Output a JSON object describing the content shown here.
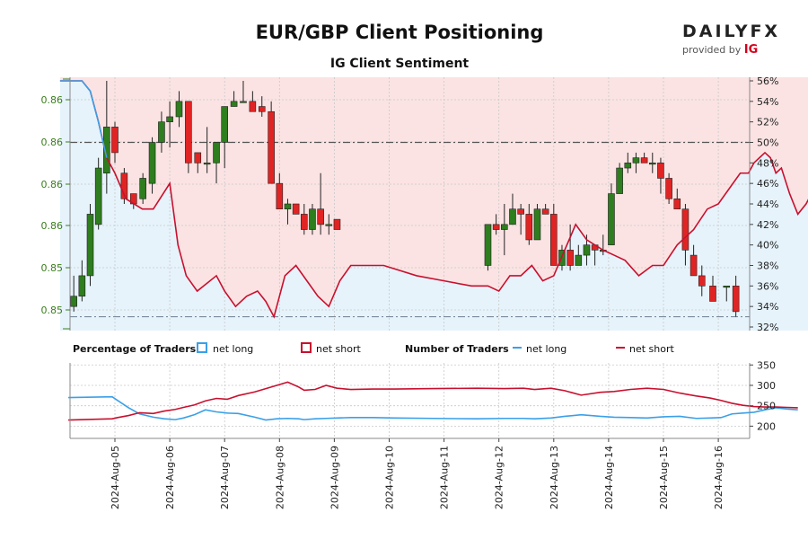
{
  "header": {
    "title": "EUR/GBP Client Positioning",
    "subtitle": "IG Client Sentiment"
  },
  "logo": {
    "brand_left": "DAILY",
    "brand_right": "FX",
    "provided_by": "provided by",
    "provider": "IG"
  },
  "colors": {
    "bull": "#2e7d1e",
    "bear": "#e02424",
    "long_line": "#3aa0e8",
    "short_line": "#c8102e",
    "long_fill": "#e6f3fb",
    "short_fill": "#fbe3e3",
    "left_axis": "#3a7d1c"
  },
  "chart_data": [
    {
      "type": "candlestick",
      "left_axis_ticks": [
        "0.86",
        "0.86",
        "0.86",
        "0.86",
        "0.85",
        "0.85"
      ],
      "right_axis_ticks": [
        "56%",
        "54%",
        "52%",
        "50%",
        "48%",
        "46%",
        "44%",
        "42%",
        "40%",
        "38%",
        "36%",
        "34%",
        "32%"
      ],
      "right_ylim": [
        32,
        56
      ],
      "reference_lines": [
        50,
        33
      ],
      "dates": [
        "2024-Aug-05",
        "2024-Aug-06",
        "2024-Aug-07",
        "2024-Aug-08",
        "2024-Aug-09",
        "2024-Aug-10",
        "2024-Aug-11",
        "2024-Aug-12",
        "2024-Aug-13",
        "2024-Aug-14",
        "2024-Aug-15",
        "2024-Aug-16"
      ],
      "candles": [
        [
          -0.75,
          33.5,
          37.0,
          34.0,
          35.0
        ],
        [
          -0.6,
          34.5,
          38.5,
          35.0,
          37.0
        ],
        [
          -0.45,
          36.0,
          44.0,
          37.0,
          43.0
        ],
        [
          -0.3,
          41.5,
          48.5,
          42.0,
          47.5
        ],
        [
          -0.15,
          45.0,
          56.0,
          47.0,
          51.5
        ],
        [
          0.0,
          48.0,
          52.0,
          51.5,
          49.0
        ],
        [
          0.17,
          44.0,
          47.5,
          47.0,
          44.5
        ],
        [
          0.34,
          43.5,
          45.0,
          45.0,
          44.0
        ],
        [
          0.51,
          44.0,
          47.0,
          44.5,
          46.5
        ],
        [
          0.68,
          45.0,
          50.5,
          46.0,
          50.0
        ],
        [
          0.85,
          49.0,
          53.0,
          50.0,
          52.0
        ],
        [
          1.0,
          49.5,
          54.0,
          52.0,
          52.5
        ],
        [
          1.17,
          51.5,
          55.0,
          52.5,
          54.0
        ],
        [
          1.34,
          47.0,
          54.0,
          54.0,
          48.0
        ],
        [
          1.51,
          47.0,
          49.0,
          49.0,
          48.0
        ],
        [
          1.68,
          47.0,
          51.5,
          48.0,
          48.0
        ],
        [
          1.85,
          46.0,
          50.0,
          48.0,
          50.0
        ],
        [
          2.0,
          47.5,
          53.5,
          50.0,
          53.5
        ],
        [
          2.17,
          53.5,
          55.0,
          53.5,
          54.0
        ],
        [
          2.34,
          54.0,
          56.0,
          54.0,
          54.0
        ],
        [
          2.51,
          53.0,
          55.0,
          54.0,
          53.0
        ],
        [
          2.68,
          52.5,
          54.5,
          53.5,
          53.0
        ],
        [
          2.85,
          46.0,
          54.0,
          53.0,
          46.0
        ],
        [
          3.0,
          45.0,
          47.0,
          46.0,
          43.5
        ],
        [
          3.15,
          42.0,
          44.5,
          43.5,
          44.0
        ],
        [
          3.3,
          43.0,
          44.0,
          44.0,
          43.0
        ],
        [
          3.45,
          41.0,
          44.0,
          43.0,
          41.5
        ],
        [
          3.6,
          41.0,
          44.0,
          41.5,
          43.5
        ],
        [
          3.75,
          41.0,
          47.0,
          43.5,
          42.0
        ],
        [
          3.9,
          41.0,
          43.0,
          42.0,
          42.0
        ],
        [
          4.05,
          41.5,
          42.5,
          42.5,
          41.5
        ],
        [
          6.8,
          37.5,
          42.0,
          38.0,
          42.0
        ],
        [
          6.95,
          41.0,
          43.0,
          42.0,
          41.5
        ],
        [
          7.1,
          39.0,
          44.0,
          41.5,
          42.0
        ],
        [
          7.25,
          42.0,
          45.0,
          42.0,
          43.5
        ],
        [
          7.4,
          41.0,
          44.0,
          43.5,
          43.0
        ],
        [
          7.55,
          40.0,
          44.0,
          43.0,
          40.5
        ],
        [
          7.7,
          41.0,
          44.0,
          40.5,
          43.5
        ],
        [
          7.85,
          43.0,
          44.0,
          43.5,
          43.0
        ],
        [
          8.0,
          38.0,
          44.0,
          43.0,
          38.0
        ],
        [
          8.15,
          37.5,
          40.0,
          38.0,
          39.5
        ],
        [
          8.3,
          37.5,
          42.0,
          39.5,
          38.0
        ],
        [
          8.45,
          38.0,
          40.0,
          38.0,
          39.0
        ],
        [
          8.6,
          38.0,
          41.0,
          39.0,
          40.0
        ],
        [
          8.75,
          38.0,
          40.0,
          40.0,
          39.5
        ],
        [
          8.9,
          39.0,
          41.0,
          39.5,
          39.5
        ],
        [
          9.05,
          40.0,
          46.0,
          40.0,
          45.0
        ],
        [
          9.2,
          45.0,
          48.0,
          45.0,
          47.5
        ],
        [
          9.35,
          47.0,
          49.0,
          47.5,
          48.0
        ],
        [
          9.5,
          47.0,
          49.0,
          48.0,
          48.5
        ],
        [
          9.65,
          48.0,
          49.0,
          48.5,
          48.0
        ],
        [
          9.8,
          47.0,
          49.0,
          48.0,
          48.0
        ],
        [
          9.95,
          45.0,
          48.5,
          48.0,
          46.5
        ],
        [
          10.1,
          44.0,
          47.0,
          46.5,
          44.5
        ],
        [
          10.25,
          44.0,
          45.5,
          44.5,
          43.5
        ],
        [
          10.4,
          38.0,
          44.0,
          43.5,
          39.5
        ],
        [
          10.55,
          37.5,
          40.0,
          39.0,
          37.0
        ],
        [
          10.7,
          35.0,
          38.0,
          37.0,
          36.0
        ],
        [
          10.9,
          34.5,
          37.0,
          36.0,
          34.5
        ],
        [
          11.15,
          34.5,
          36.0,
          36.0,
          36.0
        ],
        [
          11.32,
          33.0,
          37.0,
          36.0,
          33.5
        ]
      ],
      "net_short_pct": [
        [
          -1.0,
          56.0
        ],
        [
          -0.6,
          56.0
        ],
        [
          -0.45,
          55.0
        ],
        [
          -0.3,
          52.0
        ],
        [
          -0.15,
          48.5
        ],
        [
          0.0,
          47.0
        ],
        [
          0.2,
          44.5
        ],
        [
          0.5,
          43.5
        ],
        [
          0.7,
          43.5
        ],
        [
          1.0,
          46.0
        ],
        [
          1.15,
          40.0
        ],
        [
          1.3,
          37.0
        ],
        [
          1.5,
          35.5
        ],
        [
          1.85,
          37.0
        ],
        [
          2.0,
          35.5
        ],
        [
          2.2,
          34.0
        ],
        [
          2.4,
          35.0
        ],
        [
          2.6,
          35.5
        ],
        [
          2.75,
          34.5
        ],
        [
          2.9,
          33.0
        ],
        [
          3.1,
          37.0
        ],
        [
          3.3,
          38.0
        ],
        [
          3.5,
          36.5
        ],
        [
          3.7,
          35.0
        ],
        [
          3.9,
          34.0
        ],
        [
          4.1,
          36.5
        ],
        [
          4.3,
          38.0
        ],
        [
          4.6,
          38.0
        ],
        [
          4.9,
          38.0
        ],
        [
          5.5,
          37.0
        ],
        [
          6.0,
          36.5
        ],
        [
          6.5,
          36.0
        ],
        [
          6.8,
          36.0
        ],
        [
          7.0,
          35.5
        ],
        [
          7.2,
          37.0
        ],
        [
          7.4,
          37.0
        ],
        [
          7.6,
          38.0
        ],
        [
          7.8,
          36.5
        ],
        [
          8.0,
          37.0
        ],
        [
          8.2,
          39.5
        ],
        [
          8.4,
          42.0
        ],
        [
          8.6,
          40.5
        ],
        [
          8.9,
          39.5
        ],
        [
          9.1,
          39.0
        ],
        [
          9.3,
          38.5
        ],
        [
          9.55,
          37.0
        ],
        [
          9.8,
          38.0
        ],
        [
          10.0,
          38.0
        ],
        [
          10.25,
          40.0
        ],
        [
          10.55,
          41.5
        ],
        [
          10.8,
          43.5
        ],
        [
          11.0,
          44.0
        ],
        [
          11.2,
          45.5
        ],
        [
          11.4,
          47.0
        ],
        [
          11.55,
          47.0
        ],
        [
          11.65,
          48.0
        ],
        [
          11.75,
          48.5
        ],
        [
          11.85,
          49.0
        ],
        [
          11.95,
          48.5
        ],
        [
          12.05,
          47.0
        ],
        [
          12.15,
          47.5
        ],
        [
          12.3,
          45.0
        ],
        [
          12.45,
          43.0
        ],
        [
          12.6,
          44.0
        ],
        [
          12.75,
          45.5
        ],
        [
          12.9,
          47.0
        ],
        [
          13.05,
          47.5
        ],
        [
          13.2,
          47.0
        ],
        [
          13.35,
          47.5
        ],
        [
          13.5,
          48.5
        ],
        [
          13.65,
          49.0
        ],
        [
          13.8,
          49.5
        ]
      ],
      "net_long_count": [
        [
          -0.85,
          270
        ],
        [
          -0.05,
          272
        ],
        [
          0.05,
          263
        ],
        [
          0.25,
          245
        ],
        [
          0.45,
          230
        ],
        [
          0.7,
          222
        ],
        [
          0.9,
          218
        ],
        [
          1.1,
          216
        ],
        [
          1.25,
          220
        ],
        [
          1.45,
          228
        ],
        [
          1.65,
          240
        ],
        [
          1.85,
          235
        ],
        [
          2.05,
          232
        ],
        [
          2.25,
          231
        ],
        [
          2.55,
          222
        ],
        [
          2.75,
          215
        ],
        [
          2.95,
          218
        ],
        [
          3.15,
          219
        ],
        [
          3.35,
          218
        ],
        [
          3.45,
          216
        ],
        [
          3.65,
          218
        ],
        [
          3.85,
          219
        ],
        [
          4.05,
          220
        ],
        [
          4.3,
          221
        ],
        [
          4.7,
          221
        ],
        [
          5.1,
          220
        ],
        [
          5.8,
          219
        ],
        [
          6.6,
          218
        ],
        [
          7.1,
          219
        ],
        [
          7.45,
          219
        ],
        [
          7.65,
          218
        ],
        [
          7.95,
          220
        ],
        [
          8.2,
          224
        ],
        [
          8.5,
          228
        ],
        [
          8.85,
          224
        ],
        [
          9.1,
          222
        ],
        [
          9.4,
          221
        ],
        [
          9.7,
          220
        ],
        [
          10.0,
          223
        ],
        [
          10.3,
          224
        ],
        [
          10.6,
          219
        ],
        [
          10.85,
          220
        ],
        [
          11.05,
          221
        ],
        [
          11.25,
          230
        ],
        [
          11.45,
          232
        ],
        [
          11.65,
          234
        ],
        [
          11.85,
          240
        ],
        [
          12.05,
          245
        ],
        [
          12.25,
          242
        ],
        [
          12.45,
          240
        ]
      ],
      "net_short_count": [
        [
          -0.85,
          215
        ],
        [
          -0.05,
          218
        ],
        [
          0.05,
          221
        ],
        [
          0.25,
          226
        ],
        [
          0.45,
          233
        ],
        [
          0.7,
          231
        ],
        [
          0.9,
          237
        ],
        [
          1.1,
          241
        ],
        [
          1.25,
          246
        ],
        [
          1.45,
          252
        ],
        [
          1.65,
          262
        ],
        [
          1.85,
          268
        ],
        [
          2.05,
          266
        ],
        [
          2.25,
          275
        ],
        [
          2.55,
          284
        ],
        [
          2.75,
          292
        ],
        [
          2.95,
          300
        ],
        [
          3.15,
          308
        ],
        [
          3.35,
          296
        ],
        [
          3.45,
          288
        ],
        [
          3.65,
          290
        ],
        [
          3.85,
          300
        ],
        [
          4.05,
          293
        ],
        [
          4.3,
          290
        ],
        [
          4.7,
          291
        ],
        [
          5.1,
          291
        ],
        [
          5.8,
          292
        ],
        [
          6.6,
          293
        ],
        [
          7.1,
          292
        ],
        [
          7.45,
          293
        ],
        [
          7.65,
          290
        ],
        [
          7.95,
          293
        ],
        [
          8.2,
          287
        ],
        [
          8.5,
          276
        ],
        [
          8.85,
          283
        ],
        [
          9.1,
          285
        ],
        [
          9.4,
          290
        ],
        [
          9.7,
          293
        ],
        [
          10.0,
          290
        ],
        [
          10.3,
          281
        ],
        [
          10.6,
          274
        ],
        [
          10.85,
          269
        ],
        [
          11.05,
          263
        ],
        [
          11.25,
          256
        ],
        [
          11.45,
          251
        ],
        [
          11.65,
          248
        ],
        [
          11.85,
          247
        ],
        [
          12.05,
          247
        ],
        [
          12.25,
          246
        ],
        [
          12.45,
          245
        ]
      ]
    },
    {
      "type": "line",
      "right_axis_ticks": [
        "350",
        "300",
        "250",
        "200"
      ],
      "right_ylim": [
        170,
        355
      ],
      "legend": {
        "percentage_title": "Percentage of Traders",
        "number_title": "Number of Traders",
        "net_long": "net long",
        "net_short": "net short"
      }
    }
  ]
}
